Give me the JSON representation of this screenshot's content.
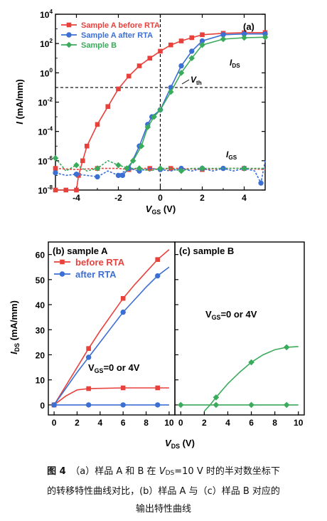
{
  "chart_data": [
    {
      "type": "line",
      "panel_label": "(a)",
      "xlabel": "V",
      "xlabel_sub": "GS",
      "xlabel_unit": " (V)",
      "ylabel": "I",
      "ylabel_unit": " (mA/mm)",
      "xlim": [
        -5,
        5
      ],
      "ylim_log10": [
        -8,
        4
      ],
      "y_scale": "log",
      "x_ticks": [
        -4,
        -2,
        0,
        2,
        4
      ],
      "y_tick_exponents": [
        -8,
        -6,
        -4,
        -2,
        0,
        2,
        4
      ],
      "legend": "top-left",
      "annotations": [
        {
          "text": "I",
          "sub": "DS"
        },
        {
          "text": "V",
          "sub": "th"
        },
        {
          "text": "I",
          "sub": "GS"
        }
      ],
      "reference_lines": {
        "vertical_x": 0,
        "horizontal_y": 0.1
      },
      "series": [
        {
          "name": "Sample A before RTA",
          "color": "#e8413c",
          "marker": "square",
          "x": [
            -5,
            -4.5,
            -4,
            -3.9,
            -3.7,
            -3.5,
            -3,
            -2.5,
            -2,
            -1.5,
            -1,
            -0.5,
            0,
            0.5,
            1,
            1.5,
            2,
            3,
            4,
            5
          ],
          "y": [
            1e-08,
            1e-08,
            1e-08,
            1e-07,
            1e-06,
            1e-05,
            0.0003,
            0.005,
            0.08,
            0.6,
            3,
            10,
            30,
            80,
            150,
            250,
            400,
            500,
            550,
            560
          ],
          "x_gs": [
            -5,
            -4,
            -3,
            -2,
            -1.5,
            -1,
            -0.5,
            0,
            0.5,
            1,
            2,
            3,
            4,
            5
          ],
          "y_gs": [
            3e-07,
            2.5e-07,
            3e-07,
            3e-07,
            2.5e-07,
            3e-07,
            3e-07,
            2.5e-07,
            3e-07,
            3e-07,
            2.5e-07,
            3e-07,
            3e-07,
            2.5e-07
          ]
        },
        {
          "name": "Sample A after RTA",
          "color": "#3b6fd4",
          "marker": "circle",
          "x": [
            -1.8,
            -1.5,
            -1,
            -0.6,
            -0.4,
            0,
            0.5,
            1,
            1.5,
            2,
            3,
            4,
            5
          ],
          "y": [
            1e-07,
            3e-07,
            1e-05,
            0.0003,
            0.001,
            0.003,
            0.1,
            3,
            30,
            150,
            400,
            450,
            450
          ],
          "x_gs": [
            -5,
            -4.5,
            -4,
            -3.5,
            -3,
            -2.5,
            -2,
            -1.5,
            -1,
            -0.5,
            0,
            0.5,
            1,
            1.5,
            2,
            2.5,
            3,
            3.5,
            4,
            4.5,
            4.8,
            5
          ],
          "y_gs": [
            1.5e-07,
            1e-07,
            1.2e-07,
            1e-07,
            8e-08,
            2e-07,
            1e-07,
            3e-07,
            2e-07,
            3e-07,
            2.5e-07,
            2e-07,
            3e-07,
            2e-07,
            3e-07,
            2e-07,
            3e-07,
            2e-07,
            3e-07,
            2e-07,
            3e-08,
            1e-06
          ]
        },
        {
          "name": "Sample B",
          "color": "#3aaa5b",
          "marker": "diamond",
          "x": [
            -1.6,
            -1.3,
            -0.9,
            -0.6,
            -0.3,
            0,
            0.5,
            1,
            1.5,
            2,
            3,
            4,
            5
          ],
          "y": [
            3e-07,
            1e-06,
            1e-05,
            0.0002,
            0.001,
            0.003,
            0.05,
            1,
            10,
            80,
            200,
            250,
            270
          ],
          "x_gs": [
            -5,
            -4.5,
            -4,
            -3.5,
            -3,
            -2.5,
            -2,
            -1.5,
            -1,
            -0.5,
            0,
            0.5,
            1,
            1.5,
            2,
            3,
            4,
            5
          ],
          "y_gs": [
            1.5e-06,
            2e-07,
            5e-07,
            2e-07,
            3e-07,
            1e-06,
            5e-07,
            3e-07,
            3e-07,
            2e-07,
            3e-07,
            3e-07,
            2e-07,
            3e-07,
            3e-07,
            3e-07,
            3e-07,
            3e-07
          ]
        }
      ]
    },
    {
      "type": "line",
      "panel_label": "(b) sample A",
      "xlim": [
        -0.5,
        10.5
      ],
      "ylim": [
        -4,
        65
      ],
      "x_ticks": [
        0,
        2,
        4,
        6,
        8,
        10
      ],
      "y_ticks": [
        0,
        10,
        20,
        30,
        40,
        50,
        60
      ],
      "ylabel": "I",
      "ylabel_sub": "DS",
      "ylabel_unit": " (mA/mm)",
      "legend": "top-left",
      "annotation": {
        "text": "V",
        "sub": "GS",
        "rest": "=0 or 4V"
      },
      "series": [
        {
          "name": "before RTA",
          "color": "#e8413c",
          "marker": "square",
          "vgs": 4,
          "x": [
            0,
            3,
            6,
            9
          ],
          "y": [
            0,
            22.5,
            42.5,
            58
          ],
          "curve": [
            [
              0,
              0
            ],
            [
              1,
              7.5
            ],
            [
              2,
              15
            ],
            [
              3,
              22.5
            ],
            [
              4,
              29.5
            ],
            [
              5,
              36
            ],
            [
              6,
              42.5
            ],
            [
              7,
              48
            ],
            [
              8,
              53
            ],
            [
              9,
              58
            ],
            [
              10,
              62
            ]
          ]
        },
        {
          "name": "before RTA",
          "color": "#e8413c",
          "marker": "square",
          "vgs": 0,
          "x": [
            0,
            3,
            6,
            9
          ],
          "y": [
            0,
            6.5,
            6.8,
            6.8
          ],
          "curve": [
            [
              0,
              0
            ],
            [
              1,
              3.5
            ],
            [
              2,
              6
            ],
            [
              3,
              6.5
            ],
            [
              6,
              6.8
            ],
            [
              9,
              6.8
            ],
            [
              10,
              6.8
            ]
          ]
        },
        {
          "name": "after RTA",
          "color": "#3b6fd4",
          "marker": "circle",
          "vgs": 4,
          "x": [
            0,
            3,
            6,
            9
          ],
          "y": [
            0,
            19,
            37,
            51.5
          ],
          "curve": [
            [
              0,
              0
            ],
            [
              1,
              6.5
            ],
            [
              2,
              13
            ],
            [
              3,
              19
            ],
            [
              4,
              25
            ],
            [
              5,
              31
            ],
            [
              6,
              37
            ],
            [
              7,
              42
            ],
            [
              8,
              47
            ],
            [
              9,
              51.5
            ],
            [
              10,
              55
            ]
          ]
        },
        {
          "name": "after RTA",
          "color": "#3b6fd4",
          "marker": "circle",
          "vgs": 0,
          "x": [
            0,
            3,
            6,
            9
          ],
          "y": [
            0,
            0,
            0,
            0
          ],
          "curve": [
            [
              0,
              0
            ],
            [
              10,
              0
            ]
          ]
        }
      ]
    },
    {
      "type": "line",
      "panel_label": "(c) sample B",
      "xlim": [
        -0.5,
        10.5
      ],
      "ylim": [
        -4,
        65
      ],
      "x_ticks": [
        0,
        2,
        4,
        6,
        8,
        10
      ],
      "xlabel": "V",
      "xlabel_sub": "DS",
      "xlabel_unit": " (V)",
      "annotation": {
        "text": "V",
        "sub": "GS",
        "rest": "=0 or 4V"
      },
      "series": [
        {
          "name": "",
          "color": "#3aaa5b",
          "marker": "diamond",
          "vgs": 4,
          "x": [
            3,
            6,
            9
          ],
          "y": [
            3,
            17,
            23
          ],
          "curve": [
            [
              2,
              -2.5
            ],
            [
              2.5,
              0
            ],
            [
              3,
              3
            ],
            [
              4,
              8.5
            ],
            [
              5,
              13
            ],
            [
              6,
              17
            ],
            [
              7,
              20
            ],
            [
              8,
              22
            ],
            [
              9,
              23
            ],
            [
              10,
              23.3
            ]
          ]
        },
        {
          "name": "",
          "color": "#3aaa5b",
          "marker": "diamond",
          "vgs": 0,
          "x": [
            0,
            3,
            6,
            9
          ],
          "y": [
            0,
            0,
            0,
            0
          ],
          "curve": [
            [
              0,
              0
            ],
            [
              10,
              0
            ]
          ]
        }
      ]
    }
  ],
  "caption": {
    "fig_label": "图 4",
    "line1_pre": "（a）样品 A 和 B 在 ",
    "line1_v": "V",
    "line1_sub": "DS",
    "line1_post": "=10 V 时的半对数坐标下",
    "line2": "的转移特性曲线对比，(b）样品 A 与（c）样品 B 对应的",
    "line3": "输出特性曲线"
  }
}
